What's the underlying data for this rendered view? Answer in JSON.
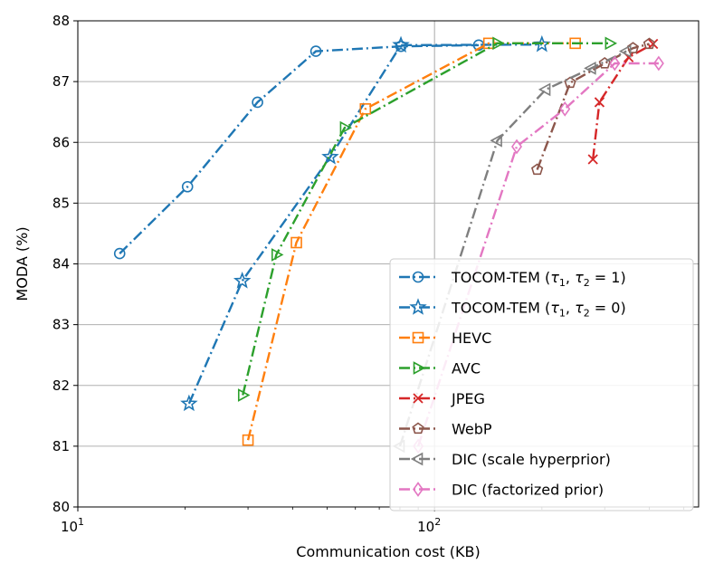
{
  "chart_data": {
    "type": "line",
    "xlabel": "Communication cost (KB)",
    "ylabel": "MODA (%)",
    "xscale": "log",
    "xlim": [
      10,
      550
    ],
    "ylim": [
      80,
      88
    ],
    "x_ticks": [
      {
        "value": 10,
        "base": "10",
        "exp": "1"
      },
      {
        "value": 100,
        "base": "10",
        "exp": "2"
      }
    ],
    "y_ticks": [
      80,
      81,
      82,
      83,
      84,
      85,
      86,
      87,
      88
    ],
    "grid": true,
    "legend_position": "bottom-right",
    "series": [
      {
        "name_parts": [
          "TOCOM-TEM (",
          "τ",
          "1",
          ", ",
          "τ",
          "2",
          " = 1)"
        ],
        "color": "#1f77b4",
        "marker": "circle",
        "x": [
          13.1,
          20.3,
          31.9,
          46.5,
          80.5,
          133.0
        ],
        "y": [
          84.17,
          85.27,
          86.66,
          87.5,
          87.58,
          87.6
        ]
      },
      {
        "name_parts": [
          "TOCOM-TEM (",
          "τ",
          "1",
          ", ",
          "τ",
          "2",
          " = 0)"
        ],
        "color": "#1f77b4",
        "marker": "star",
        "x": [
          20.5,
          28.9,
          51.0,
          80.5,
          200.0
        ],
        "y": [
          81.7,
          83.72,
          85.76,
          87.6,
          87.61
        ]
      },
      {
        "name": "HEVC",
        "color": "#ff7f0e",
        "marker": "square",
        "x": [
          30.0,
          41.0,
          64.0,
          142.0,
          248.0
        ],
        "y": [
          81.1,
          84.35,
          86.55,
          87.63,
          87.63
        ]
      },
      {
        "name": "AVC",
        "color": "#2ca02c",
        "marker": "triangle-right",
        "x": [
          29.0,
          36.0,
          56.0,
          150.0,
          310.0
        ],
        "y": [
          81.84,
          84.15,
          86.24,
          87.63,
          87.63
        ]
      },
      {
        "name": "JPEG",
        "color": "#d62728",
        "marker": "x",
        "x": [
          278.0,
          290.0,
          350.0,
          410.0
        ],
        "y": [
          85.72,
          86.66,
          87.4,
          87.62
        ]
      },
      {
        "name": "WebP",
        "color": "#8c564b",
        "marker": "pentagon",
        "x": [
          194.0,
          240.0,
          300.0,
          360.0,
          400.0
        ],
        "y": [
          85.55,
          86.98,
          87.3,
          87.55,
          87.62
        ]
      },
      {
        "name": "DIC (scale hyperprior)",
        "color": "#7f7f7f",
        "marker": "triangle-left",
        "x": [
          80.0,
          150.0,
          205.0,
          275.0,
          345.0
        ],
        "y": [
          81.0,
          86.03,
          86.87,
          87.22,
          87.5
        ]
      },
      {
        "name": "DIC (factorized prior)",
        "color": "#e377c2",
        "marker": "diamond",
        "x": [
          90.0,
          170.0,
          232.0,
          320.0,
          425.0
        ],
        "y": [
          81.0,
          85.93,
          86.55,
          87.3,
          87.3
        ]
      }
    ]
  }
}
